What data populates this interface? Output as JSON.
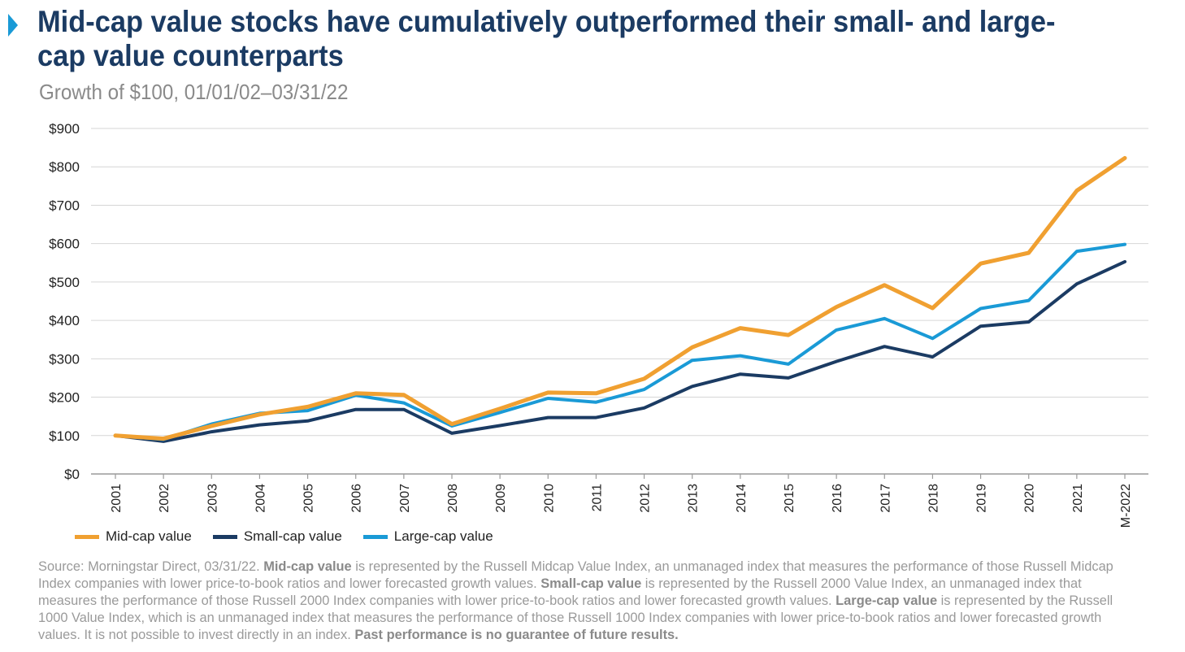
{
  "header": {
    "title": "Mid-cap value stocks have cumulatively outperformed their small- and large-cap value counterparts",
    "subtitle": "Growth of $100, 01/01/02–03/31/22"
  },
  "chart_data": {
    "type": "line",
    "title": "Mid-cap value stocks have cumulatively outperformed their small- and large-cap value counterparts",
    "subtitle": "Growth of $100, 01/01/02–03/31/22",
    "xlabel": "",
    "ylabel": "",
    "categories": [
      "2001",
      "2002",
      "2003",
      "2004",
      "2005",
      "2006",
      "2007",
      "2008",
      "2009",
      "2010",
      "2011",
      "2012",
      "2013",
      "2014",
      "2015",
      "2016",
      "2017",
      "2018",
      "2019",
      "2020",
      "2021",
      "M-2022"
    ],
    "y_ticks": [
      "$0",
      "$100",
      "$200",
      "$300",
      "$400",
      "$500",
      "$600",
      "$700",
      "$800",
      "$900"
    ],
    "ylim": [
      0,
      900
    ],
    "grid": true,
    "legend_position": "bottom-left",
    "series": [
      {
        "name": "Mid-cap value",
        "color": "#f0a031",
        "values": [
          100,
          92,
          125,
          155,
          175,
          210,
          206,
          130,
          170,
          212,
          210,
          248,
          330,
          380,
          362,
          435,
          492,
          432,
          548,
          576,
          738,
          823
        ]
      },
      {
        "name": "Small-cap value",
        "color": "#1b3b63",
        "values": [
          100,
          85,
          110,
          128,
          138,
          168,
          168,
          106,
          126,
          147,
          147,
          172,
          228,
          260,
          250,
          293,
          332,
          305,
          385,
          396,
          495,
          553
        ]
      },
      {
        "name": "Large-cap value",
        "color": "#1a9ad6",
        "values": [
          100,
          90,
          130,
          158,
          165,
          205,
          185,
          125,
          160,
          197,
          187,
          220,
          296,
          308,
          286,
          375,
          405,
          353,
          431,
          452,
          580,
          598
        ]
      }
    ]
  },
  "footnote": {
    "s1": "Source: Morningstar Direct, 03/31/22. ",
    "b1": "Mid-cap value",
    "s2": " is represented by the Russell Midcap Value Index, an unmanaged index that measures the performance of those Russell Midcap Index companies with lower price-to-book ratios and lower forecasted growth values. ",
    "b2": "Small-cap value",
    "s3": " is represented by the Russell 2000 Value Index, an unmanaged index that measures the performance of those Russell 2000 Index companies with lower price-to-book ratios and lower forecasted growth values. ",
    "b3": "Large-cap value",
    "s4": " is represented by the Russell 1000 Value Index, which is an unmanaged index that measures the performance of those Russell 1000 Index companies with lower price-to-book ratios and lower forecasted growth values. It is not possible to invest directly in an index. ",
    "b4": "Past performance is no guarantee of future results."
  }
}
